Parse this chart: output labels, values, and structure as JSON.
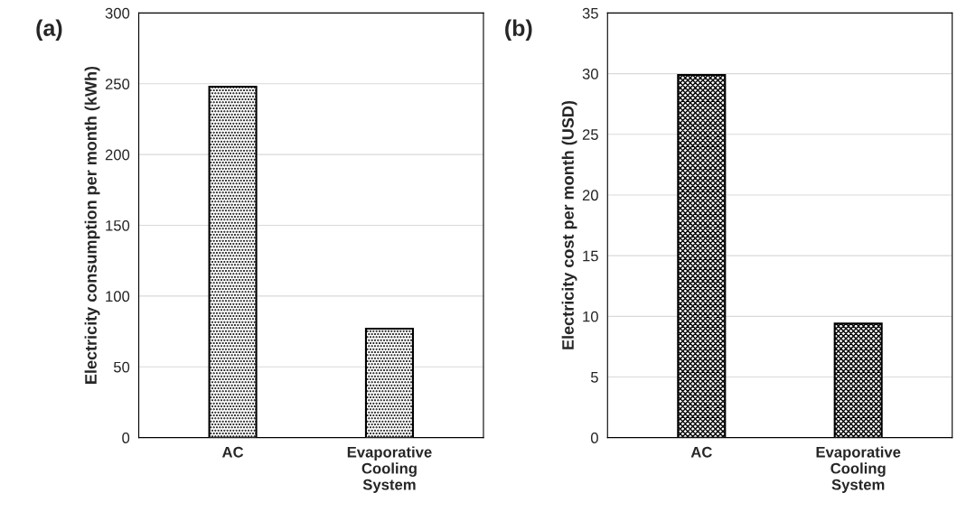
{
  "chart_data": [
    {
      "type": "bar",
      "title": "(a)",
      "ylabel": "Electricity consumption per month (kWh)",
      "categories": [
        "AC",
        "Evaporative\nCooling\nSystem"
      ],
      "values": [
        248,
        77
      ],
      "color": "#000000",
      "ylim": [
        0,
        300
      ],
      "yticks": [
        0,
        50,
        100,
        150,
        200,
        250,
        300
      ],
      "grid": "y"
    },
    {
      "type": "bar",
      "title": "(b)",
      "ylabel": "Electricity cost per month (USD)",
      "categories": [
        "AC",
        "Evaporative\nCooling\nSystem"
      ],
      "values": [
        29.9,
        9.4
      ],
      "color": "#000000",
      "ylim": [
        0,
        35
      ],
      "yticks": [
        0,
        5,
        10,
        15,
        20,
        25,
        30,
        35
      ],
      "grid": "y"
    }
  ]
}
